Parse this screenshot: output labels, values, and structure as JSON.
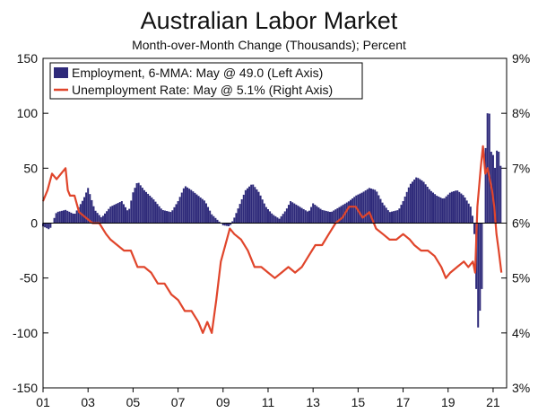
{
  "chart_data": {
    "type": "bar+line",
    "title": "Australian Labor Market",
    "subtitle": "Month-over-Month Change (Thousands); Percent",
    "left_axis": {
      "ylim": [
        -150,
        150
      ],
      "ticks": [
        150,
        100,
        50,
        0,
        -50,
        -100,
        -150
      ],
      "tick_labels": [
        "150",
        "100",
        "50",
        "0",
        "-50",
        "-100",
        "-150"
      ]
    },
    "right_axis": {
      "ylim": [
        3,
        9
      ],
      "ticks": [
        9,
        8,
        7,
        6,
        5,
        4,
        3
      ],
      "tick_labels": [
        "9%",
        "8%",
        "7%",
        "6%",
        "5%",
        "4%",
        "3%"
      ]
    },
    "x_axis": {
      "xlim": [
        2001,
        2021.6
      ],
      "ticks": [
        2001,
        2003,
        2005,
        2007,
        2009,
        2011,
        2013,
        2015,
        2017,
        2019,
        2021
      ],
      "tick_labels": [
        "01",
        "03",
        "05",
        "07",
        "09",
        "11",
        "13",
        "15",
        "17",
        "19",
        "21"
      ]
    },
    "legend": {
      "placement": "top-left",
      "items": [
        {
          "label": "Employment, 6-MMA: May @ 49.0 (Left Axis)",
          "color": "#2e2a7a",
          "kind": "bar"
        },
        {
          "label": "Unemployment Rate: May @ 5.1% (Right Axis)",
          "color": "#e0452b",
          "kind": "line"
        }
      ]
    },
    "series": [
      {
        "name": "Employment, 6-MMA",
        "axis": "left",
        "type": "bar",
        "color": "#2e2a7a",
        "anchors": [
          [
            2001.0,
            -3
          ],
          [
            2001.3,
            -6
          ],
          [
            2001.6,
            10
          ],
          [
            2002.0,
            12
          ],
          [
            2002.4,
            8
          ],
          [
            2002.8,
            22
          ],
          [
            2003.0,
            32
          ],
          [
            2003.3,
            12
          ],
          [
            2003.6,
            5
          ],
          [
            2004.0,
            15
          ],
          [
            2004.5,
            20
          ],
          [
            2004.8,
            10
          ],
          [
            2005.0,
            28
          ],
          [
            2005.2,
            38
          ],
          [
            2005.5,
            30
          ],
          [
            2005.9,
            22
          ],
          [
            2006.3,
            12
          ],
          [
            2006.7,
            10
          ],
          [
            2007.0,
            20
          ],
          [
            2007.3,
            34
          ],
          [
            2007.6,
            30
          ],
          [
            2007.9,
            25
          ],
          [
            2008.2,
            20
          ],
          [
            2008.5,
            8
          ],
          [
            2008.8,
            2
          ],
          [
            2009.0,
            -2
          ],
          [
            2009.3,
            -3
          ],
          [
            2009.5,
            5
          ],
          [
            2009.8,
            20
          ],
          [
            2010.0,
            30
          ],
          [
            2010.3,
            36
          ],
          [
            2010.6,
            28
          ],
          [
            2010.9,
            15
          ],
          [
            2011.2,
            8
          ],
          [
            2011.5,
            4
          ],
          [
            2011.8,
            12
          ],
          [
            2012.0,
            20
          ],
          [
            2012.4,
            15
          ],
          [
            2012.8,
            10
          ],
          [
            2013.0,
            18
          ],
          [
            2013.4,
            12
          ],
          [
            2013.8,
            10
          ],
          [
            2014.2,
            15
          ],
          [
            2014.6,
            20
          ],
          [
            2014.9,
            25
          ],
          [
            2015.2,
            28
          ],
          [
            2015.5,
            32
          ],
          [
            2015.8,
            30
          ],
          [
            2016.1,
            18
          ],
          [
            2016.4,
            10
          ],
          [
            2016.8,
            12
          ],
          [
            2017.0,
            20
          ],
          [
            2017.3,
            35
          ],
          [
            2017.6,
            42
          ],
          [
            2017.9,
            38
          ],
          [
            2018.2,
            30
          ],
          [
            2018.5,
            25
          ],
          [
            2018.8,
            22
          ],
          [
            2019.1,
            28
          ],
          [
            2019.4,
            30
          ],
          [
            2019.7,
            25
          ],
          [
            2020.0,
            15
          ],
          [
            2020.1,
            5
          ],
          [
            2020.15,
            0
          ],
          [
            2020.2,
            -30
          ],
          [
            2020.25,
            -60
          ],
          [
            2020.3,
            -85
          ],
          [
            2020.35,
            -100
          ],
          [
            2020.38,
            -132
          ],
          [
            2020.42,
            -75
          ],
          [
            2020.5,
            -60
          ],
          [
            2020.55,
            -40
          ],
          [
            2020.6,
            20
          ],
          [
            2020.65,
            60
          ],
          [
            2020.7,
            85
          ],
          [
            2020.75,
            100
          ],
          [
            2020.8,
            115
          ],
          [
            2020.85,
            92
          ],
          [
            2020.9,
            70
          ],
          [
            2020.95,
            55
          ],
          [
            2021.0,
            62
          ],
          [
            2021.1,
            48
          ],
          [
            2021.2,
            75
          ],
          [
            2021.3,
            55
          ],
          [
            2021.37,
            49
          ]
        ]
      },
      {
        "name": "Unemployment Rate",
        "axis": "right",
        "type": "line",
        "color": "#e0452b",
        "points": [
          [
            2001.0,
            6.4
          ],
          [
            2001.2,
            6.6
          ],
          [
            2001.4,
            6.9
          ],
          [
            2001.6,
            6.8
          ],
          [
            2001.8,
            6.9
          ],
          [
            2002.0,
            7.0
          ],
          [
            2002.1,
            6.6
          ],
          [
            2002.2,
            6.5
          ],
          [
            2002.4,
            6.5
          ],
          [
            2002.6,
            6.2
          ],
          [
            2002.9,
            6.1
          ],
          [
            2003.2,
            6.0
          ],
          [
            2003.5,
            6.0
          ],
          [
            2003.8,
            5.8
          ],
          [
            2004.0,
            5.7
          ],
          [
            2004.3,
            5.6
          ],
          [
            2004.6,
            5.5
          ],
          [
            2004.9,
            5.5
          ],
          [
            2005.2,
            5.2
          ],
          [
            2005.5,
            5.2
          ],
          [
            2005.8,
            5.1
          ],
          [
            2006.1,
            4.9
          ],
          [
            2006.4,
            4.9
          ],
          [
            2006.7,
            4.7
          ],
          [
            2007.0,
            4.6
          ],
          [
            2007.3,
            4.4
          ],
          [
            2007.6,
            4.4
          ],
          [
            2007.9,
            4.2
          ],
          [
            2008.1,
            4.0
          ],
          [
            2008.3,
            4.2
          ],
          [
            2008.5,
            4.0
          ],
          [
            2008.7,
            4.6
          ],
          [
            2008.9,
            5.3
          ],
          [
            2009.1,
            5.6
          ],
          [
            2009.3,
            5.9
          ],
          [
            2009.5,
            5.8
          ],
          [
            2009.8,
            5.7
          ],
          [
            2010.1,
            5.5
          ],
          [
            2010.4,
            5.2
          ],
          [
            2010.7,
            5.2
          ],
          [
            2011.0,
            5.1
          ],
          [
            2011.3,
            5.0
          ],
          [
            2011.6,
            5.1
          ],
          [
            2011.9,
            5.2
          ],
          [
            2012.2,
            5.1
          ],
          [
            2012.5,
            5.2
          ],
          [
            2012.8,
            5.4
          ],
          [
            2013.1,
            5.6
          ],
          [
            2013.4,
            5.6
          ],
          [
            2013.7,
            5.8
          ],
          [
            2014.0,
            6.0
          ],
          [
            2014.3,
            6.1
          ],
          [
            2014.6,
            6.3
          ],
          [
            2014.9,
            6.3
          ],
          [
            2015.2,
            6.1
          ],
          [
            2015.5,
            6.2
          ],
          [
            2015.8,
            5.9
          ],
          [
            2016.1,
            5.8
          ],
          [
            2016.4,
            5.7
          ],
          [
            2016.7,
            5.7
          ],
          [
            2017.0,
            5.8
          ],
          [
            2017.3,
            5.7
          ],
          [
            2017.5,
            5.6
          ],
          [
            2017.8,
            5.5
          ],
          [
            2018.1,
            5.5
          ],
          [
            2018.4,
            5.4
          ],
          [
            2018.7,
            5.2
          ],
          [
            2018.9,
            5.0
          ],
          [
            2019.1,
            5.1
          ],
          [
            2019.4,
            5.2
          ],
          [
            2019.7,
            5.3
          ],
          [
            2019.9,
            5.2
          ],
          [
            2020.1,
            5.3
          ],
          [
            2020.2,
            5.1
          ],
          [
            2020.3,
            6.3
          ],
          [
            2020.45,
            7.0
          ],
          [
            2020.55,
            7.4
          ],
          [
            2020.65,
            6.9
          ],
          [
            2020.75,
            7.0
          ],
          [
            2020.85,
            6.8
          ],
          [
            2020.95,
            6.6
          ],
          [
            2021.05,
            6.3
          ],
          [
            2021.15,
            5.8
          ],
          [
            2021.25,
            5.5
          ],
          [
            2021.37,
            5.1
          ]
        ]
      }
    ]
  }
}
